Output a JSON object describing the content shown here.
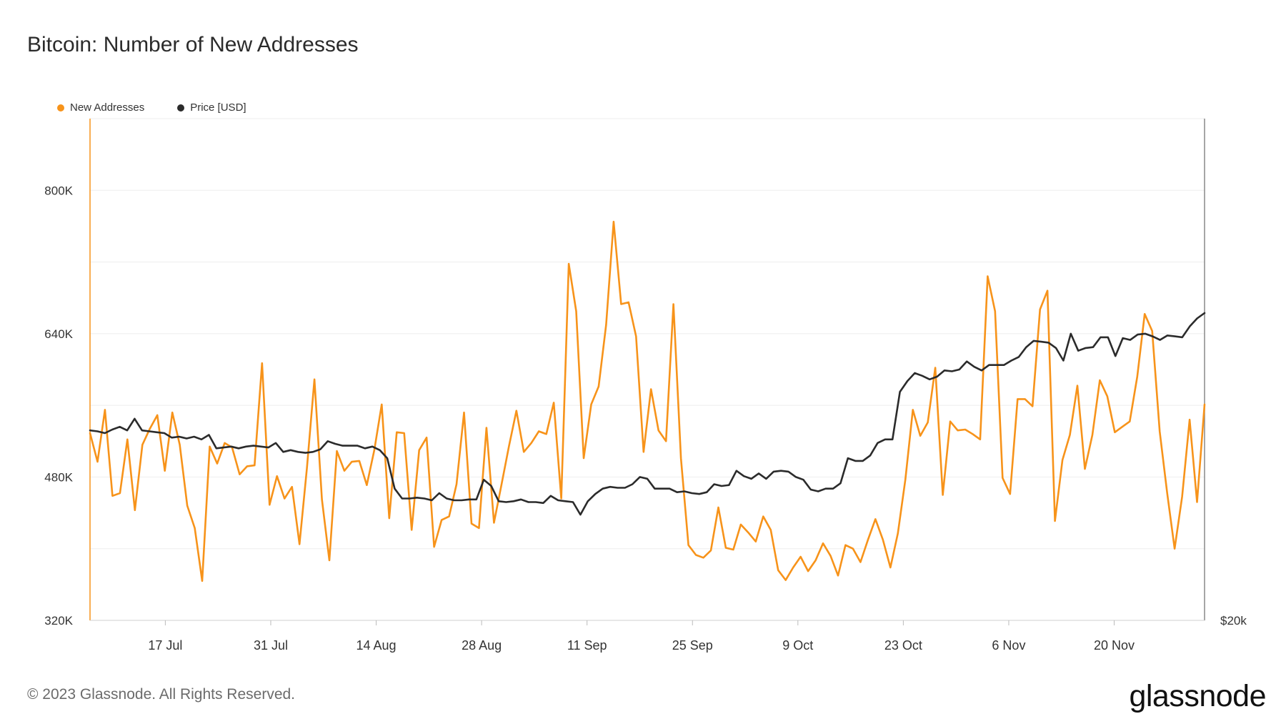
{
  "title": "Bitcoin: Number of New Addresses",
  "legend": [
    {
      "label": "New Addresses",
      "color": "#f7931a"
    },
    {
      "label": "Price [USD]",
      "color": "#2b2b2b"
    }
  ],
  "footer": "© 2023 Glassnode. All Rights Reserved.",
  "logo": "glassnode",
  "chart_data": {
    "type": "line",
    "x_tick_labels": [
      "17 Jul",
      "31 Jul",
      "14 Aug",
      "28 Aug",
      "11 Sep",
      "25 Sep",
      "9 Oct",
      "23 Oct",
      "6 Nov",
      "20 Nov"
    ],
    "y_tick_labels": [
      "320K",
      "480K",
      "640K",
      "800K"
    ],
    "y_ticks": [
      320000,
      480000,
      640000,
      800000
    ],
    "ylim": [
      320000,
      880000
    ],
    "right_axis_label": "$20k",
    "x_range_days": [
      0,
      148
    ],
    "x_tick_days": [
      10,
      24,
      38,
      52,
      66,
      80,
      94,
      108,
      122,
      136
    ],
    "grid": true,
    "legend_position": "top-left",
    "series": [
      {
        "name": "New Addresses",
        "color": "#f7931a",
        "values": [
          529000,
          497000,
          555000,
          459000,
          462000,
          522000,
          443000,
          516000,
          534000,
          549000,
          487000,
          552000,
          516000,
          448000,
          423000,
          364000,
          514000,
          495000,
          518000,
          513000,
          483000,
          492000,
          493000,
          607000,
          449000,
          481000,
          456000,
          469000,
          405000,
          490000,
          589000,
          455000,
          387000,
          509000,
          487000,
          497000,
          498000,
          471000,
          510000,
          561000,
          434000,
          530000,
          529000,
          421000,
          510000,
          524000,
          402000,
          432000,
          436000,
          472000,
          552000,
          428000,
          423000,
          535000,
          429000,
          471000,
          514000,
          554000,
          508000,
          518000,
          531000,
          528000,
          563000,
          456000,
          718000,
          665000,
          501000,
          561000,
          581000,
          650000,
          765000,
          673000,
          675000,
          637000,
          508000,
          578000,
          532000,
          520000,
          673000,
          501000,
          404000,
          393000,
          390000,
          398000,
          446000,
          401000,
          399000,
          427000,
          418000,
          408000,
          436000,
          421000,
          376000,
          365000,
          379000,
          391000,
          375000,
          387000,
          406000,
          392000,
          370000,
          404000,
          400000,
          385000,
          410000,
          433000,
          410000,
          379000,
          417000,
          477000,
          555000,
          526000,
          541000,
          602000,
          460000,
          542000,
          532000,
          533000,
          528000,
          522000,
          704000,
          665000,
          479000,
          461000,
          567000,
          567000,
          559000,
          667000,
          688000,
          431000,
          499000,
          527000,
          582000,
          489000,
          527000,
          588000,
          570000,
          530000,
          536000,
          542000,
          592000,
          662000,
          643000,
          531000,
          462000,
          400000,
          458000,
          544000,
          452000,
          561000
        ],
        "y_units": "addresses"
      },
      {
        "name": "Price [USD]",
        "color": "#2b2b2b",
        "values": [
          532000,
          531000,
          529000,
          533000,
          536000,
          532000,
          545000,
          532000,
          531000,
          530000,
          529000,
          524000,
          525000,
          523000,
          525000,
          522000,
          527000,
          512000,
          513000,
          514000,
          512000,
          514000,
          515000,
          514000,
          513000,
          518000,
          508000,
          510000,
          508000,
          507000,
          508000,
          511000,
          520000,
          517000,
          515000,
          515000,
          515000,
          512000,
          514000,
          510000,
          501000,
          467000,
          456000,
          456000,
          457000,
          456000,
          454000,
          462000,
          456000,
          454000,
          454000,
          455000,
          455000,
          477000,
          470000,
          453000,
          452000,
          453000,
          455000,
          452000,
          452000,
          451000,
          459000,
          454000,
          453000,
          452000,
          438000,
          453000,
          461000,
          467000,
          469000,
          468000,
          468000,
          472000,
          480000,
          478000,
          467000,
          467000,
          467000,
          463000,
          464000,
          462000,
          461000,
          463000,
          472000,
          470000,
          471000,
          487000,
          481000,
          478000,
          484000,
          478000,
          486000,
          487000,
          486000,
          480000,
          477000,
          466000,
          464000,
          467000,
          467000,
          473000,
          501000,
          498000,
          498000,
          504000,
          518000,
          522000,
          522000,
          575000,
          587000,
          596000,
          593000,
          589000,
          592000,
          599000,
          598000,
          600000,
          609000,
          603000,
          599000,
          605000,
          605000,
          605000,
          610000,
          614000,
          625000,
          632000,
          631000,
          630000,
          624000,
          610000,
          640000,
          621000,
          624000,
          625000,
          636000,
          636000,
          615000,
          635000,
          633000,
          639000,
          640000,
          637000,
          633000,
          638000,
          637000,
          636000,
          648000,
          657000,
          663000
        ]
      }
    ]
  }
}
